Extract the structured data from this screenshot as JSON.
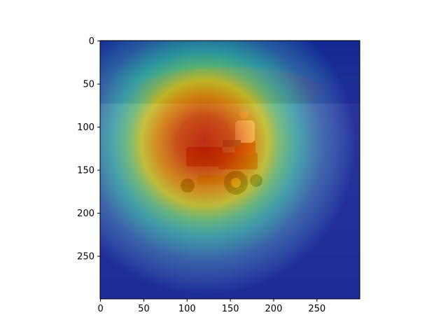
{
  "chart_data": {
    "type": "heatmap",
    "title": "",
    "xlabel": "",
    "ylabel": "",
    "xlim": [
      0,
      299
    ],
    "ylim": [
      299,
      0
    ],
    "x_ticks": [
      0,
      50,
      100,
      150,
      200,
      250
    ],
    "y_ticks": [
      0,
      50,
      100,
      150,
      200,
      250
    ],
    "x_tick_labels": [
      "0",
      "50",
      "100",
      "150",
      "200",
      "250"
    ],
    "y_tick_labels": [
      "0",
      "50",
      "100",
      "150",
      "200",
      "250"
    ],
    "grid": false,
    "colormap": "jet",
    "overlay": "attention heatmap over photo",
    "heatmap_peak": {
      "x": 140,
      "y": 125
    },
    "photo_content": "person riding a red lawn tractor on a dirt field with bushes behind"
  }
}
